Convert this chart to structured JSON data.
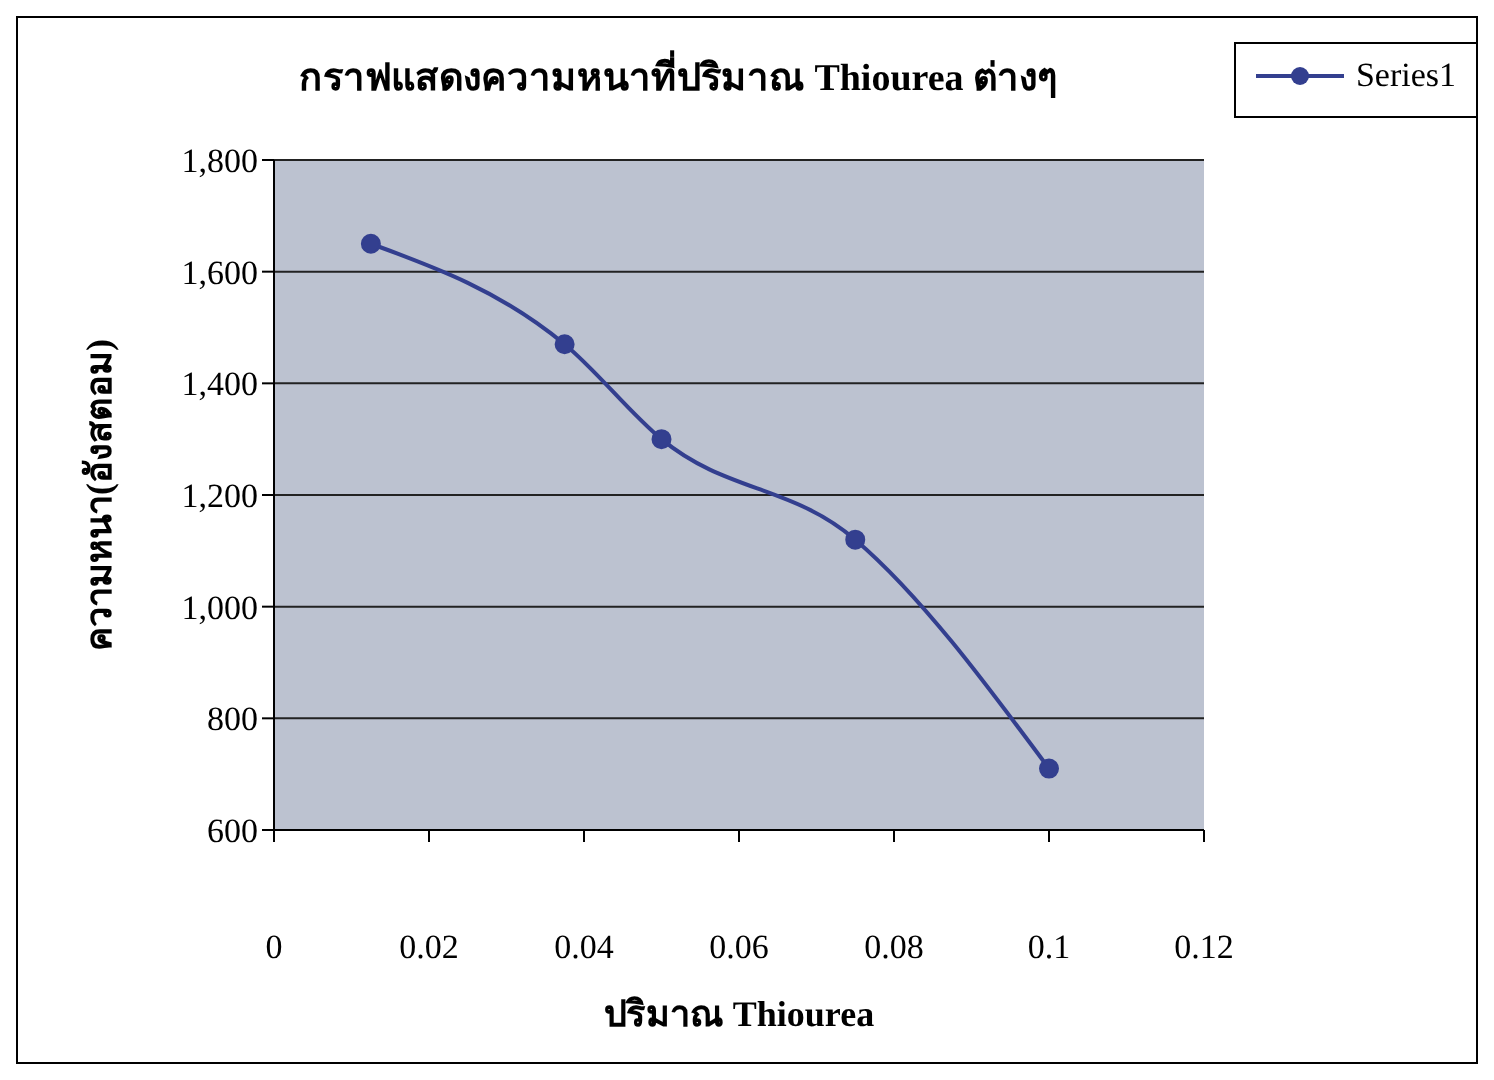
{
  "chart_data": {
    "type": "line",
    "title": "กราฟแสดงความหนาที่ปริมาณ Thiourea ต่างๆ",
    "xlabel": "ปริมาณ Thiourea",
    "ylabel": "ความหนา(อังสตอม)",
    "series": [
      {
        "name": "Series1",
        "color": "#333f8f",
        "x": [
          0.0125,
          0.0375,
          0.05,
          0.075,
          0.1
        ],
        "values": [
          1650,
          1470,
          1300,
          1120,
          710
        ]
      }
    ],
    "xlim": [
      0,
      0.12
    ],
    "xticks": [
      0,
      0.02,
      0.04,
      0.06,
      0.08,
      0.1,
      0.12
    ],
    "ylim": [
      600,
      1800
    ],
    "yticks": [
      600,
      800,
      {
        "value": 1000,
        "label": "1,000"
      },
      {
        "value": 1200,
        "label": "1,200"
      },
      {
        "value": 1400,
        "label": "1,400"
      },
      {
        "value": 1600,
        "label": "1,600"
      },
      {
        "value": 1800,
        "label": "1,800"
      }
    ],
    "grid": "y",
    "legend": "top right",
    "marker": "circle"
  }
}
